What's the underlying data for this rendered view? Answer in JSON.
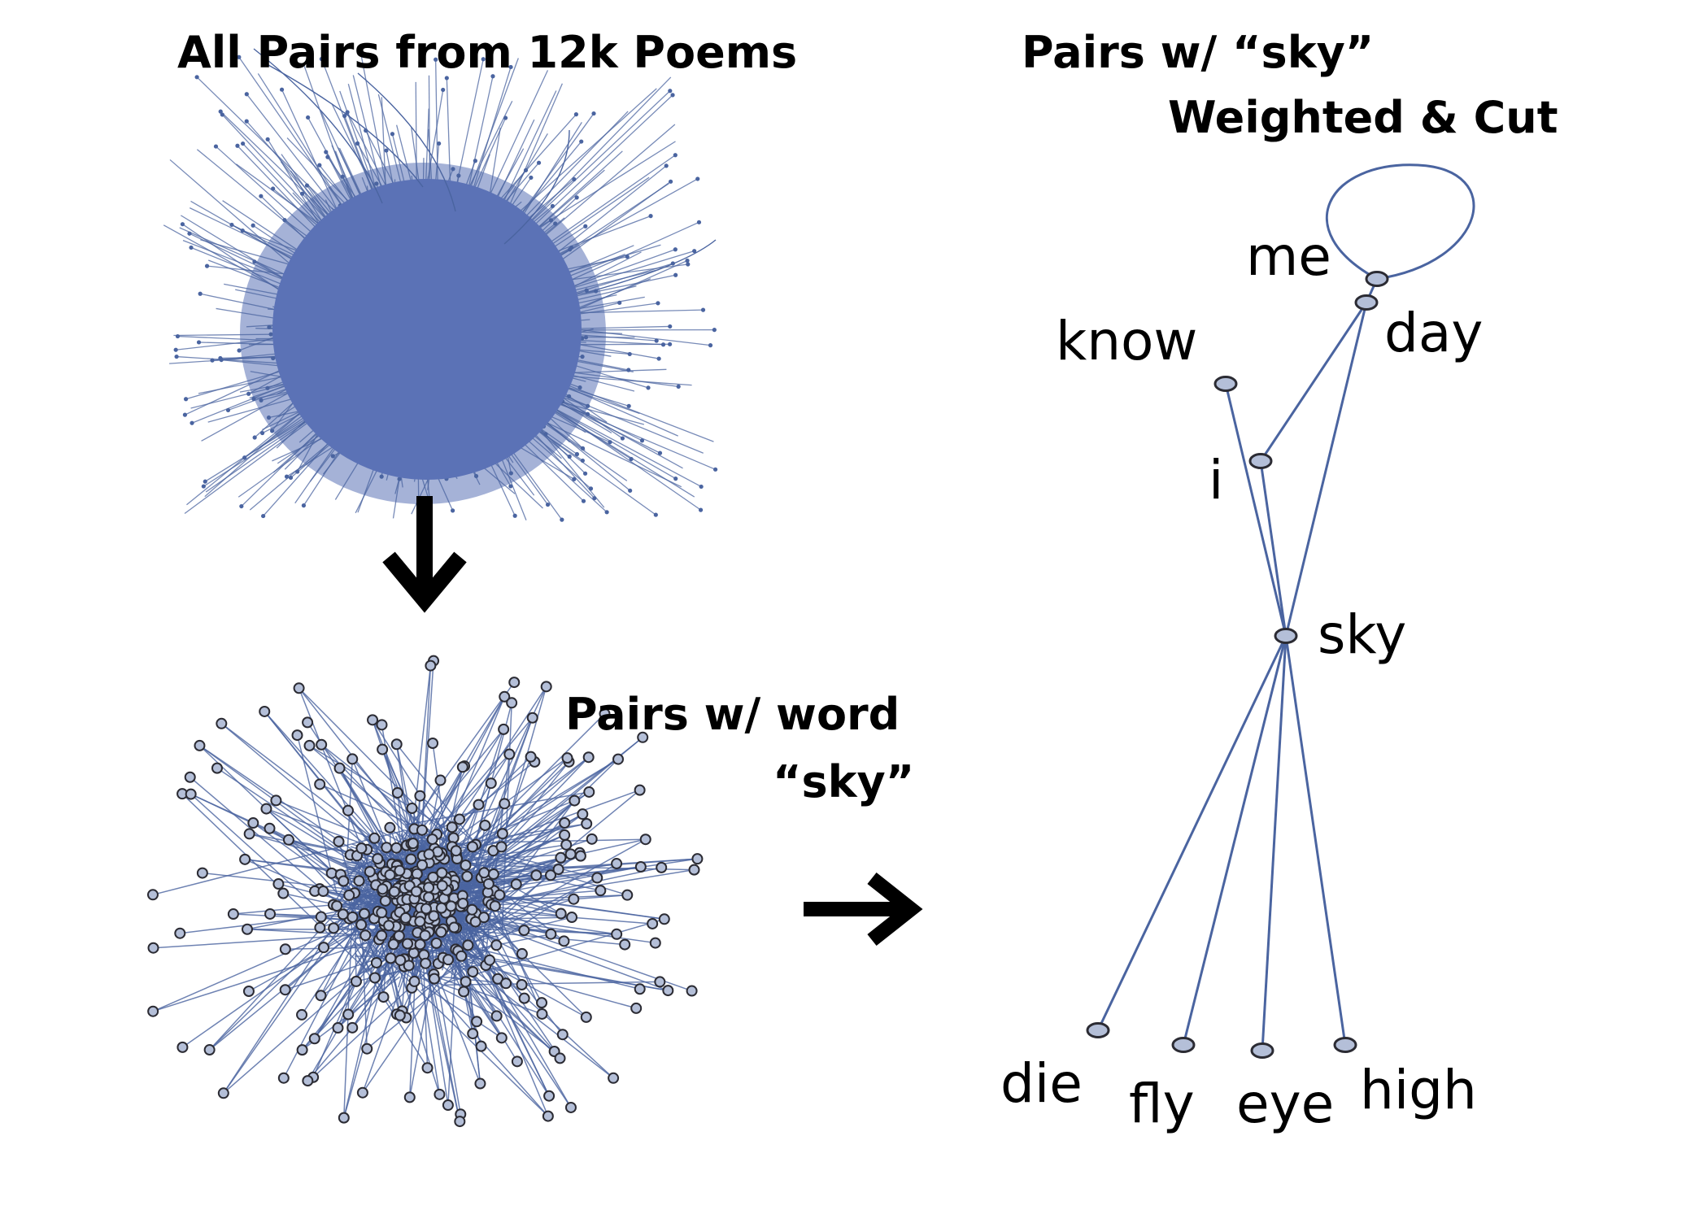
{
  "titles": {
    "all_pairs": "All Pairs from 12k Poems",
    "pairs_word_line1": "Pairs w/ word",
    "pairs_word_line2": "“sky”",
    "pairs_sky_line1": "Pairs w/ “sky”",
    "pairs_sky_line2": "Weighted & Cut"
  },
  "colors": {
    "edge": "#4a64a0",
    "dense_fill": "#5b72b6",
    "node_fill": "#b4bfd8",
    "node_stroke": "#2b2b33",
    "arrow": "#000000"
  },
  "weighted_graph": {
    "center": "sky",
    "nodes": [
      "me",
      "day",
      "know",
      "i",
      "sky",
      "die",
      "fly",
      "eye",
      "high"
    ],
    "edges": [
      [
        "me",
        "me"
      ],
      [
        "me",
        "day"
      ],
      [
        "i",
        "day"
      ],
      [
        "sky",
        "day"
      ],
      [
        "know",
        "sky"
      ],
      [
        "i",
        "sky"
      ],
      [
        "sky",
        "die"
      ],
      [
        "sky",
        "fly"
      ],
      [
        "sky",
        "eye"
      ],
      [
        "sky",
        "high"
      ]
    ]
  }
}
